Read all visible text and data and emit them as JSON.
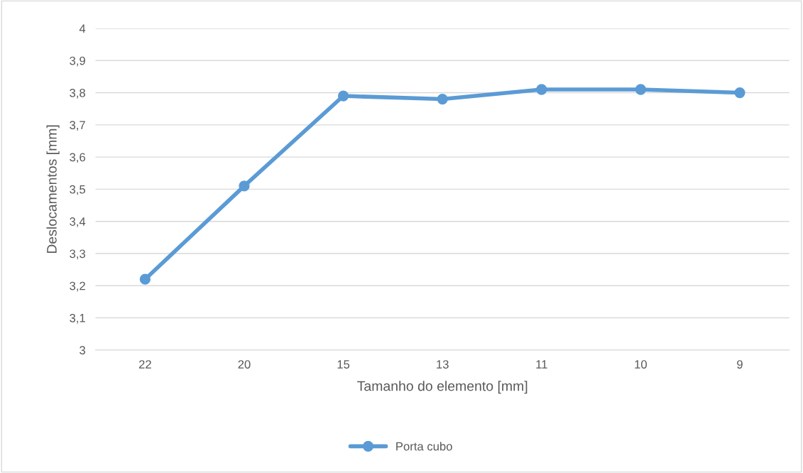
{
  "chart_data": {
    "type": "line",
    "xlabel": "Tamanho do elemento [mm]",
    "ylabel": "Deslocamentos [mm]",
    "categories": [
      "22",
      "20",
      "15",
      "13",
      "11",
      "10",
      "9"
    ],
    "series": [
      {
        "name": "Porta cubo",
        "color": "#5b9bd5",
        "values": [
          3.22,
          3.51,
          3.79,
          3.78,
          3.81,
          3.81,
          3.8
        ]
      }
    ],
    "ylim": [
      3,
      4
    ],
    "yticks": [
      3,
      {
        "value": 3.1,
        "label": "3,1"
      },
      {
        "value": 3.2,
        "label": "3,2"
      },
      {
        "value": 3.3,
        "label": "3,3"
      },
      {
        "value": 3.4,
        "label": "3,4"
      },
      {
        "value": 3.5,
        "label": "3,5"
      },
      {
        "value": 3.6,
        "label": "3,6"
      },
      {
        "value": 3.7,
        "label": "3,7"
      },
      {
        "value": 3.8,
        "label": "3,8"
      },
      {
        "value": 3.9,
        "label": "3,9"
      },
      4
    ],
    "grid": "y",
    "legend": "bottom",
    "marker": "circle",
    "line_style": "solid"
  }
}
